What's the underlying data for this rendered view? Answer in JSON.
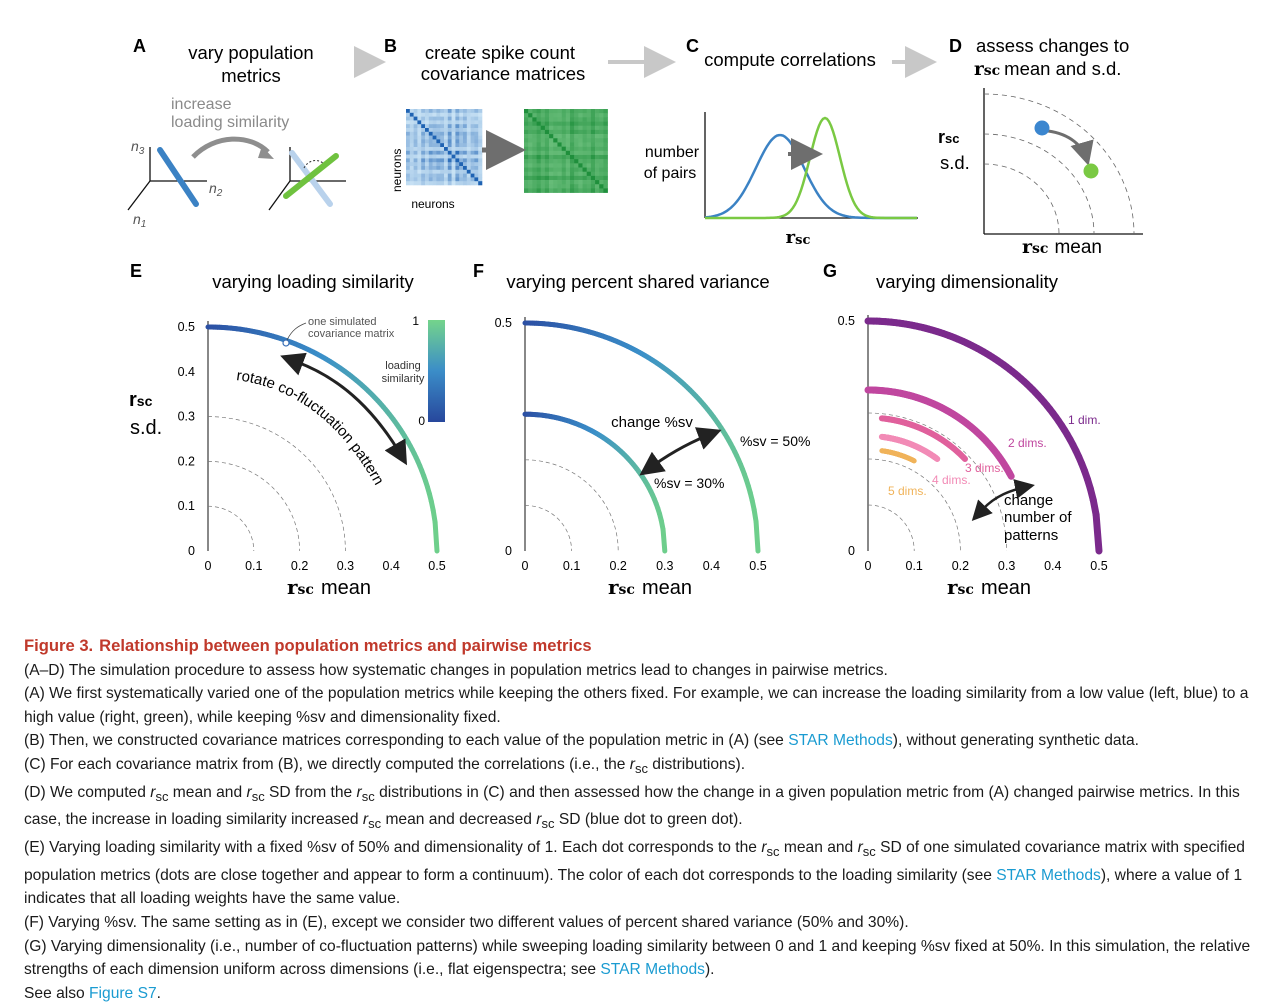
{
  "panels": {
    "A": {
      "letter": "A",
      "title_l1": "vary population",
      "title_l2": "metrics",
      "annotation_l1": "increase",
      "annotation_l2": "loading similarity",
      "axis_n1": "n",
      "axis_n1_sub": "1",
      "axis_n2": "n",
      "axis_n2_sub": "2",
      "axis_n3": "n",
      "axis_n3_sub": "3"
    },
    "B": {
      "letter": "B",
      "title_l1": "create spike count",
      "title_l2": "covariance matrices",
      "ylabel": "neurons",
      "xlabel": "neurons"
    },
    "C": {
      "letter": "C",
      "title": "compute correlations",
      "ylabel_l1": "number",
      "ylabel_l2": "of pairs",
      "xlabel": "r",
      "xlabel_sub": "sc"
    },
    "D": {
      "letter": "D",
      "title_l1": "assess changes to",
      "title_l2_sym": "r",
      "title_l2_sub": "sc",
      "title_l2_rest": "mean and s.d.",
      "ylabel_sym": "r",
      "ylabel_sub": "sc",
      "ylabel_rest": "s.d.",
      "xlabel_sym": "r",
      "xlabel_sub": "sc",
      "xlabel_rest": "mean",
      "colors": {
        "before": "#3b86cf",
        "after": "#7ac943"
      }
    },
    "E": {
      "letter": "E",
      "title": "varying loading similarity",
      "annotation_l1": "one simulated",
      "annotation_l2": "covariance matrix",
      "arrow_label": "rotate co-fluctuation pattern",
      "colorbar_label_l1": "loading",
      "colorbar_label_l2": "similarity",
      "colorbar_max": "1",
      "colorbar_min": "0",
      "colors": {
        "low": "#2f55a6",
        "high": "#6ccf8a"
      }
    },
    "F": {
      "letter": "F",
      "title": "varying percent shared variance",
      "arrow_label": "change %sv",
      "label_50": "%sv = 50%",
      "label_30": "%sv = 30%"
    },
    "G": {
      "letter": "G",
      "title": "varying dimensionality",
      "labels": [
        "1 dim.",
        "2 dims.",
        "3 dims.",
        "4 dims.",
        "5 dims."
      ],
      "label_colors": [
        "#7b2a8c",
        "#c0479f",
        "#e0609c",
        "#f28bb6",
        "#f0b35a"
      ],
      "arrow_label_l1": "change",
      "arrow_label_l2": "number of",
      "arrow_label_l3": "patterns"
    }
  },
  "axes": {
    "ylabel_sym": "r",
    "ylabel_sub": "sc",
    "ylabel_rest": "s.d.",
    "xlabel_sym": "r",
    "xlabel_sub": "sc",
    "xlabel_rest": "mean"
  },
  "chart_data": [
    {
      "panel": "E",
      "type": "scatter",
      "title": "varying loading similarity",
      "xlabel": "rsc mean",
      "ylabel": "rsc s.d.",
      "xlim": [
        0,
        0.5
      ],
      "ylim": [
        0,
        0.5
      ],
      "x_ticks": [
        "0",
        "0.1",
        "0.2",
        "0.3",
        "0.4",
        "0.5"
      ],
      "y_ticks": [
        "0",
        "0.1",
        "0.2",
        "0.3",
        "0.4",
        "0.5"
      ],
      "series": [
        {
          "values_description_radius": 0.5,
          "x_range": [
            0,
            0.5
          ]
        }
      ],
      "dashed_radii": [
        0.1,
        0.2,
        0.3
      ]
    },
    {
      "panel": "F",
      "type": "scatter",
      "title": "varying percent shared variance",
      "xlabel": "rsc mean",
      "xlim": [
        0,
        0.5
      ],
      "ylim": [
        0,
        0.5
      ],
      "x_ticks": [
        "0",
        "0.1",
        "0.2",
        "0.3",
        "0.4",
        "0.5"
      ],
      "y_ticks": [
        "0",
        "0.5"
      ],
      "series": [
        {
          "name": "%sv = 50%",
          "radius": 0.5
        },
        {
          "name": "%sv = 30%",
          "radius": 0.3
        }
      ],
      "dashed_radii": [
        0.1,
        0.2,
        0.3
      ]
    },
    {
      "panel": "G",
      "type": "scatter",
      "title": "varying dimensionality",
      "xlabel": "rsc mean",
      "xlim": [
        0,
        0.5
      ],
      "ylim": [
        0,
        0.5
      ],
      "x_ticks": [
        "0",
        "0.1",
        "0.2",
        "0.3",
        "0.4",
        "0.5"
      ],
      "y_ticks": [
        "0",
        "0.5"
      ],
      "series": [
        {
          "name": "1 dim.",
          "radius": 0.5,
          "x_range": [
            0,
            0.5
          ]
        },
        {
          "name": "2 dims.",
          "radius": 0.35,
          "x_range": [
            0,
            0.31
          ]
        },
        {
          "name": "3 dims.",
          "radius": 0.29,
          "x_range": [
            0.03,
            0.21
          ]
        },
        {
          "name": "4 dims.",
          "radius": 0.25,
          "x_range": [
            0.03,
            0.15
          ]
        },
        {
          "name": "5 dims.",
          "radius": 0.22,
          "x_range": [
            0.03,
            0.1
          ]
        }
      ],
      "dashed_radii": [
        0.1,
        0.2,
        0.3
      ]
    }
  ],
  "caption": {
    "fig_label": "Figure 3.",
    "fig_title": "Relationship between population metrics and pairwise metrics",
    "p1": "(A–D) The simulation procedure to assess how systematic changes in population metrics lead to changes in pairwise metrics.",
    "p2": "(A) We first systematically varied one of the population metrics while keeping the others fixed. For example, we can increase the loading similarity from a low value (left, blue) to a high value (right, green), while keeping %sv and dimensionality fixed.",
    "p3a": "(B) Then, we constructed covariance matrices corresponding to each value of the population metric in (A) (see ",
    "p3_link": "STAR Methods",
    "p3b": "), without generating synthetic data.",
    "p4a": "(C) For each covariance matrix from (B), we directly computed the correlations (i.e., the ",
    "p4_r": "r",
    "p4_sub": "sc",
    "p4b": " distributions).",
    "p5a": "(D) We computed ",
    "p5_r1": "r",
    "p5_s1": "sc",
    "p5b": " mean and ",
    "p5_r2": "r",
    "p5_s2": "sc",
    "p5c": " SD from the ",
    "p5_r3": "r",
    "p5_s3": "sc",
    "p5d": " distributions in (C) and then assessed how the change in a given population metric from (A) changed pairwise metrics. In this case, the increase in loading similarity increased ",
    "p5_r4": "r",
    "p5_s4": "sc",
    "p5e": " mean and decreased ",
    "p5_r5": "r",
    "p5_s5": "sc",
    "p5f": " SD (blue dot to green dot).",
    "p6a": "(E) Varying loading similarity with a fixed %sv of 50% and dimensionality of 1. Each dot corresponds to the ",
    "p6_r1": "r",
    "p6_s1": "sc",
    "p6b": " mean and ",
    "p6_r2": "r",
    "p6_s2": "sc",
    "p6c": " SD of one simulated covariance matrix with specified population metrics (dots are close together and appear to form a continuum). The color of each dot corresponds to the loading similarity (see ",
    "p6_link": "STAR Methods",
    "p6d": "), where a value of 1 indicates that all loading weights have the same value.",
    "p7": "(F) Varying %sv. The same setting as in (E), except we consider two different values of percent shared variance (50% and 30%).",
    "p8a": "(G) Varying dimensionality (i.e., number of co-fluctuation patterns) while sweeping loading similarity between 0 and 1 and keeping %sv fixed at 50%. In this simulation, the relative strengths of each dimension uniform across dimensions (i.e., flat eigenspectra; see ",
    "p8_link": "STAR Methods",
    "p8b": ").",
    "p9a": "See also ",
    "p9_link": "Figure S7",
    "p9b": "."
  }
}
